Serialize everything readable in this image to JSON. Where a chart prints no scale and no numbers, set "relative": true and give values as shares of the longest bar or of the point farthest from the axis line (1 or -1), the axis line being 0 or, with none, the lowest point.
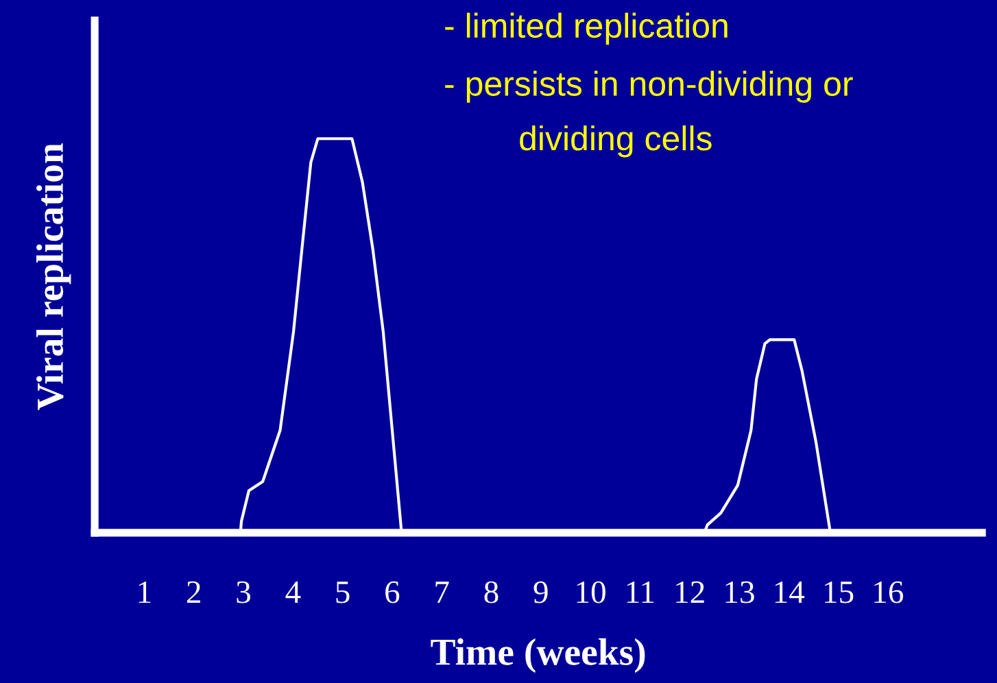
{
  "chart_data": {
    "type": "line",
    "relative": true,
    "xlabel": "Time (weeks)",
    "ylabel": "Viral replication",
    "annotations": [
      "- limited replication",
      "- persists in non-dividing or",
      "dividing cells"
    ],
    "xlim": [
      0,
      17.9
    ],
    "xticks": [
      1,
      2,
      3,
      4,
      5,
      6,
      7,
      8,
      9,
      10,
      11,
      12,
      13,
      14,
      15,
      16
    ],
    "grid": false,
    "marker": "none",
    "line_style": "solid",
    "series": [
      {
        "color": "#ffffff",
        "x": [
          2.94,
          2.96,
          3.11,
          3.39,
          3.74,
          4.01,
          4.18,
          4.36,
          4.5,
          5.19,
          5.4,
          5.61,
          5.82,
          6.19
        ],
        "values": [
          0,
          0.03,
          0.107,
          0.13,
          0.26,
          0.51,
          0.72,
          0.94,
          1,
          1,
          0.89,
          0.72,
          0.51,
          0
        ]
      },
      {
        "color": "#ffffff",
        "x": [
          12.3,
          12.36,
          12.63,
          12.97,
          13.24,
          13.35,
          13.52,
          13.62,
          14.11,
          14.27,
          14.55,
          14.84
        ],
        "values": [
          0,
          0.02,
          0.05,
          0.12,
          0.26,
          0.39,
          0.48,
          0.49,
          0.49,
          0.41,
          0.23,
          0
        ]
      }
    ]
  }
}
